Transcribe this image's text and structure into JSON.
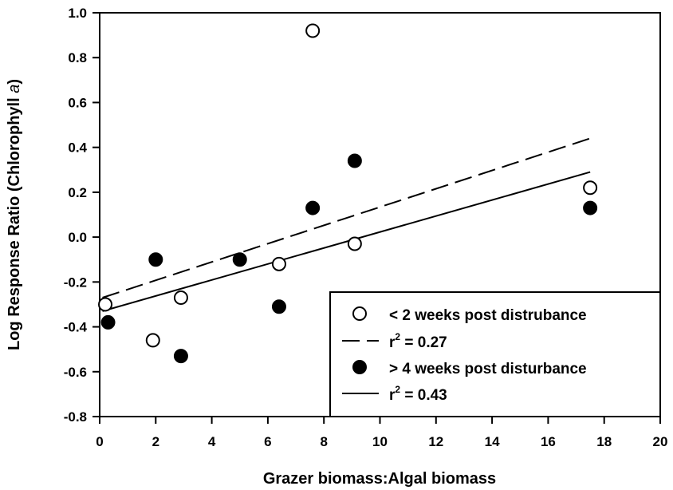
{
  "chart_data": {
    "type": "scatter",
    "xlabel": "Grazer biomass:Algal biomass",
    "ylabel_prefix": "Log Response Ratio (Chlorophyll ",
    "ylabel_italic": "a",
    "ylabel_suffix": ")",
    "xlim": [
      0,
      20
    ],
    "ylim": [
      -0.8,
      1.0
    ],
    "xticks": [
      0,
      2,
      4,
      6,
      8,
      10,
      12,
      14,
      16,
      18,
      20
    ],
    "xtick_labels": [
      "0",
      "2",
      "4",
      "6",
      "8",
      "10",
      "12",
      "14",
      "16",
      "18",
      "20"
    ],
    "yticks": [
      -0.8,
      -0.6,
      -0.4,
      -0.2,
      0.0,
      0.2,
      0.4,
      0.6,
      0.8,
      1.0
    ],
    "ytick_labels": [
      "-0.8",
      "-0.6",
      "-0.4",
      "-0.2",
      "0.0",
      "0.2",
      "0.4",
      "0.6",
      "0.8",
      "1.0"
    ],
    "grid": false,
    "legend_position": "bottom-right",
    "series": [
      {
        "name": "< 2 weeks post distrubance",
        "marker": "open-circle",
        "points": [
          {
            "x": 0.2,
            "y": -0.3
          },
          {
            "x": 1.9,
            "y": -0.46
          },
          {
            "x": 2.9,
            "y": -0.27
          },
          {
            "x": 6.4,
            "y": -0.12
          },
          {
            "x": 7.6,
            "y": 0.92
          },
          {
            "x": 9.1,
            "y": -0.03
          },
          {
            "x": 17.5,
            "y": 0.22
          }
        ],
        "fit": {
          "style": "dashed",
          "x": [
            0.1,
            17.5
          ],
          "y": [
            -0.27,
            0.44
          ],
          "label": "r",
          "label_sup": "2",
          "label_value": " = 0.27"
        }
      },
      {
        "name": "> 4 weeks post disturbance",
        "marker": "filled-circle",
        "points": [
          {
            "x": 0.3,
            "y": -0.38
          },
          {
            "x": 2.0,
            "y": -0.1
          },
          {
            "x": 2.9,
            "y": -0.53
          },
          {
            "x": 5.0,
            "y": -0.1
          },
          {
            "x": 6.4,
            "y": -0.31
          },
          {
            "x": 7.6,
            "y": 0.13
          },
          {
            "x": 9.1,
            "y": 0.34
          },
          {
            "x": 17.5,
            "y": 0.13
          }
        ],
        "fit": {
          "style": "solid",
          "x": [
            0.1,
            17.5
          ],
          "y": [
            -0.33,
            0.29
          ],
          "label": "r",
          "label_sup": "2",
          "label_value": " = 0.43"
        }
      }
    ],
    "colors": {
      "ink": "#000000",
      "background": "#ffffff"
    }
  }
}
